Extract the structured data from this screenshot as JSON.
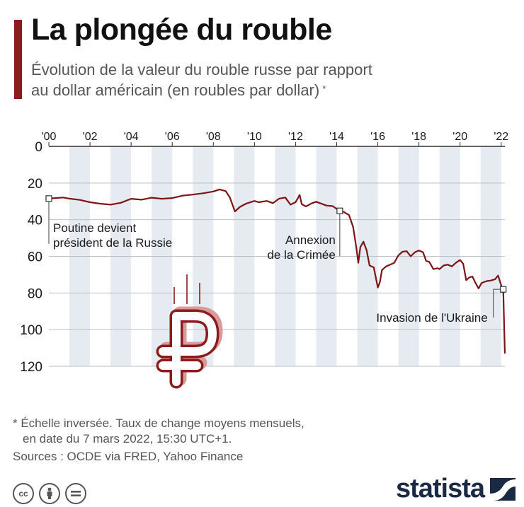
{
  "header": {
    "title": "La plongée du rouble",
    "subtitle_line1": "Évolution de la valeur du rouble russe par rapport",
    "subtitle_line2": "au dollar américain (en roubles par dollar)",
    "subtitle_mark": "*"
  },
  "footer": {
    "note_line1": "* Échelle inversée. Taux de change moyens mensuels,",
    "note_line2": "en date du 7 mars 2022, 15:30 UTC+1.",
    "sources": "Sources : OCDE via FRED, Yahoo Finance",
    "licence_icons": [
      "creative-commons-icon",
      "attribution-icon",
      "no-derivatives-icon"
    ],
    "brand": "statista"
  },
  "colors": {
    "accent": "#8c1c1c",
    "line": "#7d1416",
    "band": "#e6eaf1",
    "text": "#1a1a1a",
    "muted": "#555555",
    "brand": "#1b2a44"
  },
  "chart_data": {
    "type": "line",
    "x_ticks": [
      "'00",
      "'02",
      "'04",
      "'06",
      "'08",
      "'10",
      "'12",
      "'14",
      "'16",
      "'18",
      "'20",
      "'22"
    ],
    "y_ticks": [
      0,
      20,
      40,
      60,
      80,
      100,
      120
    ],
    "ylim": [
      0,
      120
    ],
    "y_inverted": true,
    "x_range": [
      2000.0,
      2022.18
    ],
    "grid": true,
    "series": [
      {
        "points": [
          [
            2000.0,
            28.5
          ],
          [
            2000.3,
            28.2
          ],
          [
            2000.7,
            27.9
          ],
          [
            2001.0,
            28.5
          ],
          [
            2001.5,
            29.2
          ],
          [
            2002.0,
            30.5
          ],
          [
            2002.5,
            31.3
          ],
          [
            2003.0,
            31.8
          ],
          [
            2003.5,
            30.8
          ],
          [
            2004.0,
            28.6
          ],
          [
            2004.5,
            29.1
          ],
          [
            2005.0,
            28.0
          ],
          [
            2005.5,
            28.6
          ],
          [
            2006.0,
            28.2
          ],
          [
            2006.5,
            26.9
          ],
          [
            2007.0,
            26.3
          ],
          [
            2007.5,
            25.6
          ],
          [
            2008.0,
            24.6
          ],
          [
            2008.3,
            23.5
          ],
          [
            2008.6,
            24.4
          ],
          [
            2008.8,
            27.8
          ],
          [
            2009.05,
            35.5
          ],
          [
            2009.3,
            33.0
          ],
          [
            2009.6,
            31.2
          ],
          [
            2010.0,
            29.8
          ],
          [
            2010.2,
            30.5
          ],
          [
            2010.6,
            29.8
          ],
          [
            2010.9,
            31.0
          ],
          [
            2011.2,
            28.5
          ],
          [
            2011.5,
            27.9
          ],
          [
            2011.75,
            31.8
          ],
          [
            2012.0,
            30.5
          ],
          [
            2012.2,
            26.5
          ],
          [
            2012.3,
            31.5
          ],
          [
            2012.5,
            32.8
          ],
          [
            2012.8,
            31.0
          ],
          [
            2013.0,
            30.2
          ],
          [
            2013.5,
            32.3
          ],
          [
            2013.8,
            32.6
          ],
          [
            2014.15,
            35.2
          ],
          [
            2014.35,
            35.8
          ],
          [
            2014.6,
            37.5
          ],
          [
            2014.8,
            44.0
          ],
          [
            2014.95,
            55.0
          ],
          [
            2015.05,
            63.5
          ],
          [
            2015.15,
            55.0
          ],
          [
            2015.3,
            52.0
          ],
          [
            2015.45,
            56.5
          ],
          [
            2015.6,
            65.0
          ],
          [
            2015.8,
            66.0
          ],
          [
            2016.0,
            77.0
          ],
          [
            2016.1,
            74.0
          ],
          [
            2016.2,
            67.5
          ],
          [
            2016.4,
            65.5
          ],
          [
            2016.6,
            64.5
          ],
          [
            2016.8,
            63.5
          ],
          [
            2017.0,
            59.5
          ],
          [
            2017.2,
            57.5
          ],
          [
            2017.4,
            57.2
          ],
          [
            2017.6,
            60.0
          ],
          [
            2017.8,
            57.8
          ],
          [
            2018.0,
            56.8
          ],
          [
            2018.2,
            57.8
          ],
          [
            2018.35,
            62.5
          ],
          [
            2018.5,
            63.0
          ],
          [
            2018.7,
            67.0
          ],
          [
            2018.9,
            66.5
          ],
          [
            2019.0,
            67.0
          ],
          [
            2019.2,
            65.0
          ],
          [
            2019.4,
            64.5
          ],
          [
            2019.6,
            65.5
          ],
          [
            2019.8,
            63.5
          ],
          [
            2020.0,
            62.0
          ],
          [
            2020.15,
            64.0
          ],
          [
            2020.3,
            73.0
          ],
          [
            2020.45,
            71.5
          ],
          [
            2020.6,
            71.0
          ],
          [
            2020.75,
            74.5
          ],
          [
            2020.9,
            77.5
          ],
          [
            2021.05,
            74.5
          ],
          [
            2021.3,
            73.5
          ],
          [
            2021.5,
            73.2
          ],
          [
            2021.7,
            72.5
          ],
          [
            2021.85,
            70.5
          ],
          [
            2022.0,
            75.8
          ],
          [
            2022.1,
            78.0
          ],
          [
            2022.15,
            100.0
          ],
          [
            2022.18,
            113.0
          ]
        ]
      }
    ],
    "annotations": [
      {
        "x": 2000.0,
        "y": 28.5,
        "lines": [
          "Poutine devient",
          "président de la Russie"
        ],
        "anchor": "start"
      },
      {
        "x": 2014.15,
        "y": 35.2,
        "lines": [
          "Annexion",
          "de la Crimée"
        ],
        "anchor": "end"
      },
      {
        "x": 2022.1,
        "y": 78.0,
        "lines": [
          "Invasion de l'Ukraine"
        ],
        "anchor": "end"
      }
    ]
  }
}
